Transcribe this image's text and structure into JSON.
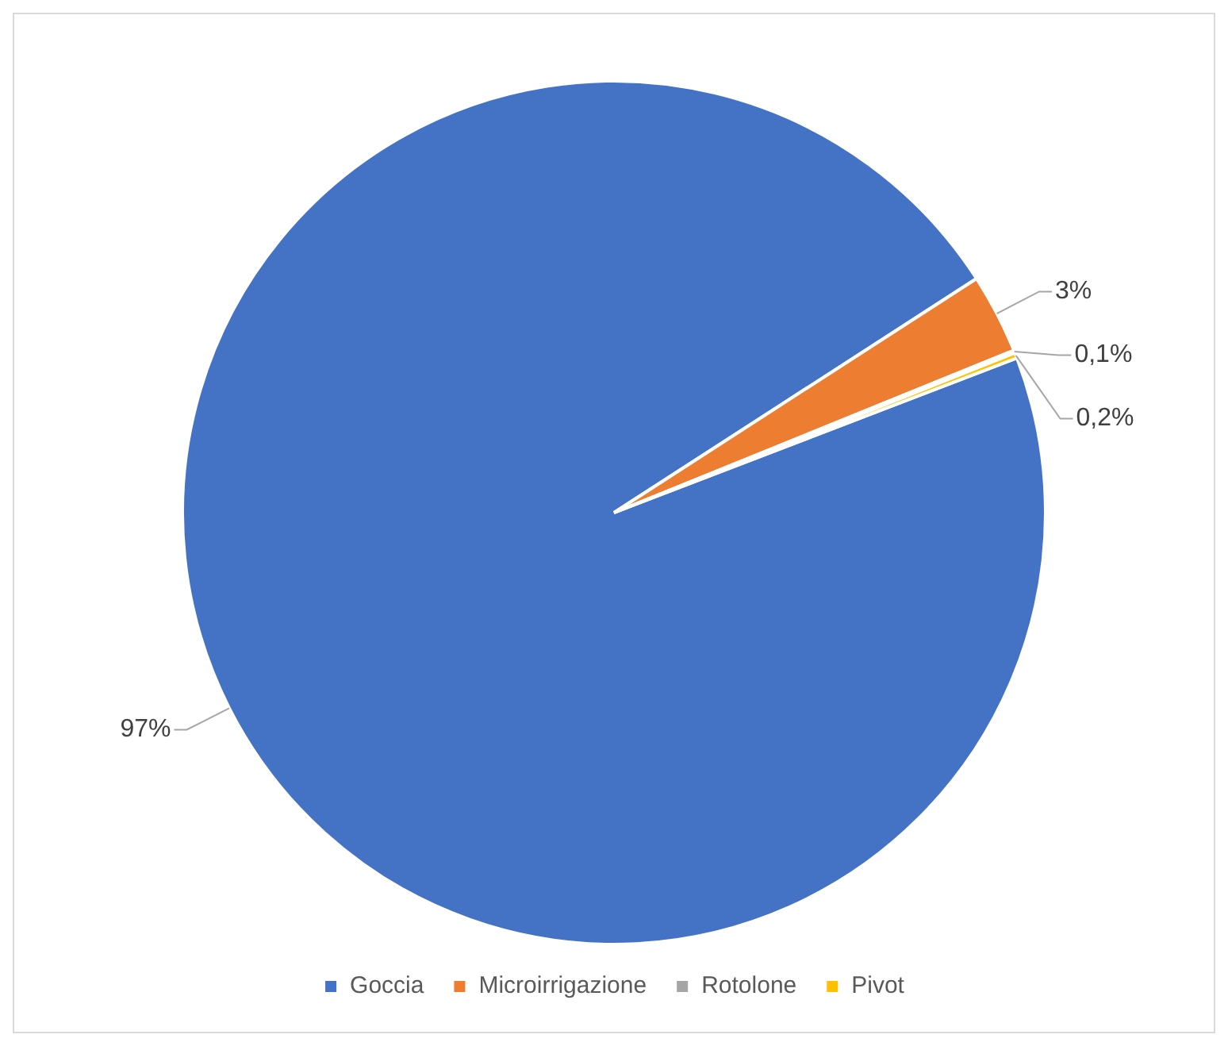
{
  "chart_data": {
    "type": "pie",
    "categories": [
      "Goccia",
      "Microirrigazione",
      "Rotolone",
      "Pivot"
    ],
    "values": [
      97,
      3,
      0.1,
      0.2
    ],
    "colors": [
      "#4472c4",
      "#ed7d31",
      "#a5a5a5",
      "#ffc000"
    ],
    "value_labels": [
      "97%",
      "3%",
      "0,1%",
      "0,2%"
    ],
    "legend": "bottom"
  }
}
